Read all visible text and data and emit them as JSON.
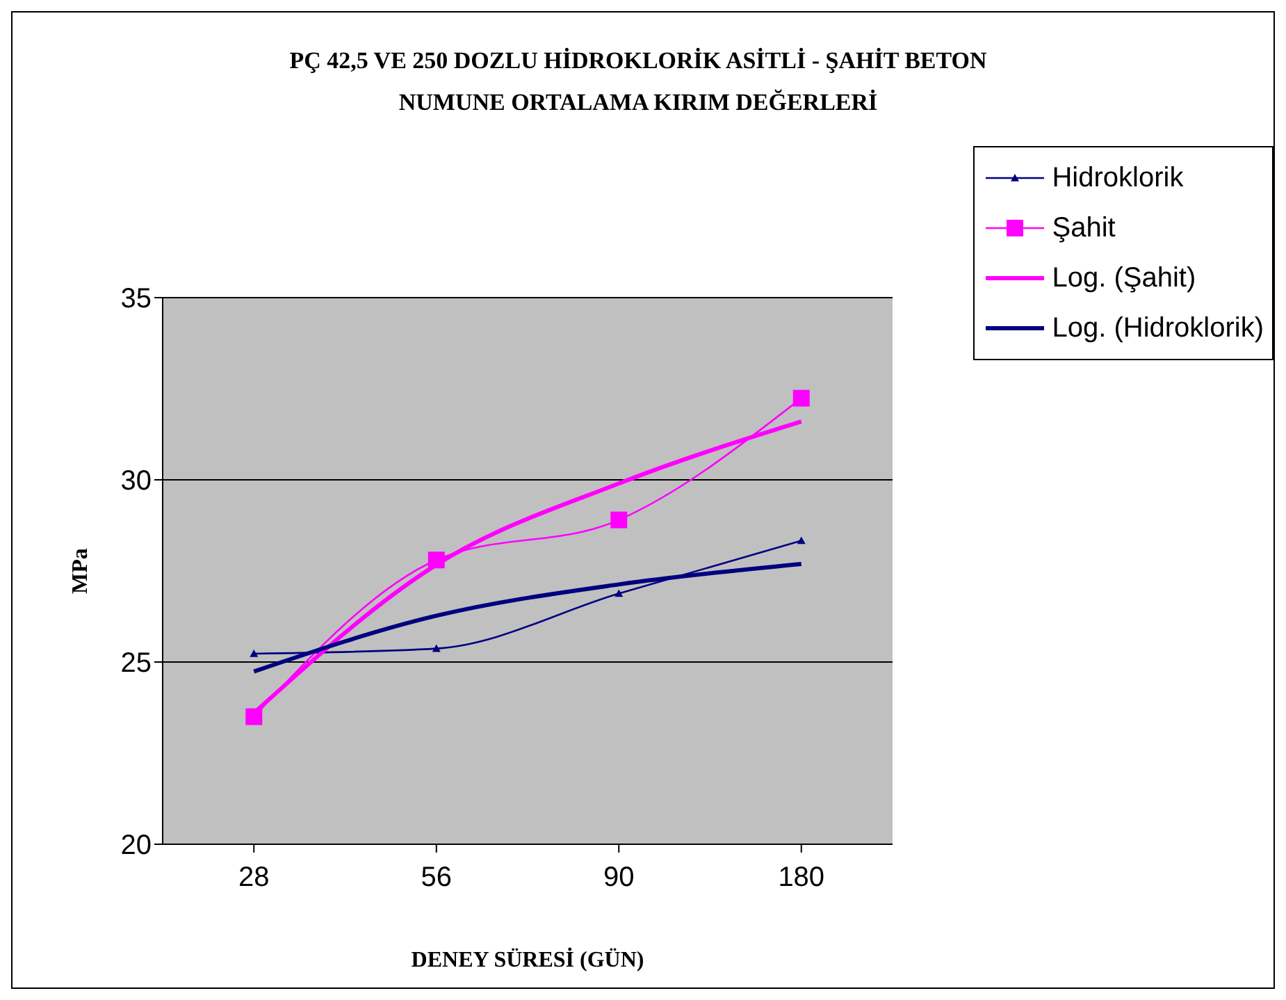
{
  "chart_data": {
    "type": "line",
    "title": "PÇ 42,5 VE 250 DOZLU  HİDROKLORİK ASİTLİ - ŞAHİT BETON\nNUMUNE ORTALAMA KIRIM DEĞERLERİ",
    "xlabel": "DENEY SÜRESİ (GÜN)",
    "ylabel": "MPa",
    "categories": [
      "28",
      "56",
      "90",
      "180"
    ],
    "series": [
      {
        "name": "Hidroklorik",
        "color": "#000080",
        "marker": "triangle",
        "values": [
          25.23,
          25.37,
          26.88,
          28.33
        ]
      },
      {
        "name": "Şahit",
        "color": "#ff00ff",
        "marker": "square",
        "values": [
          23.5,
          27.8,
          28.9,
          32.24
        ]
      },
      {
        "name": "Log. (Şahit)",
        "type": "line",
        "color": "#ff00ff",
        "marker": "none",
        "values": [
          23.6,
          27.67,
          29.9,
          31.6
        ]
      },
      {
        "name": "Log. (Hidroklorik)",
        "type": "line",
        "color": "#000080",
        "marker": "none",
        "values": [
          24.74,
          26.27,
          27.13,
          27.69
        ]
      }
    ],
    "ylim": [
      20,
      35
    ],
    "yticks": [
      20,
      25,
      30,
      35
    ],
    "grid": "y",
    "legend": "top right"
  }
}
